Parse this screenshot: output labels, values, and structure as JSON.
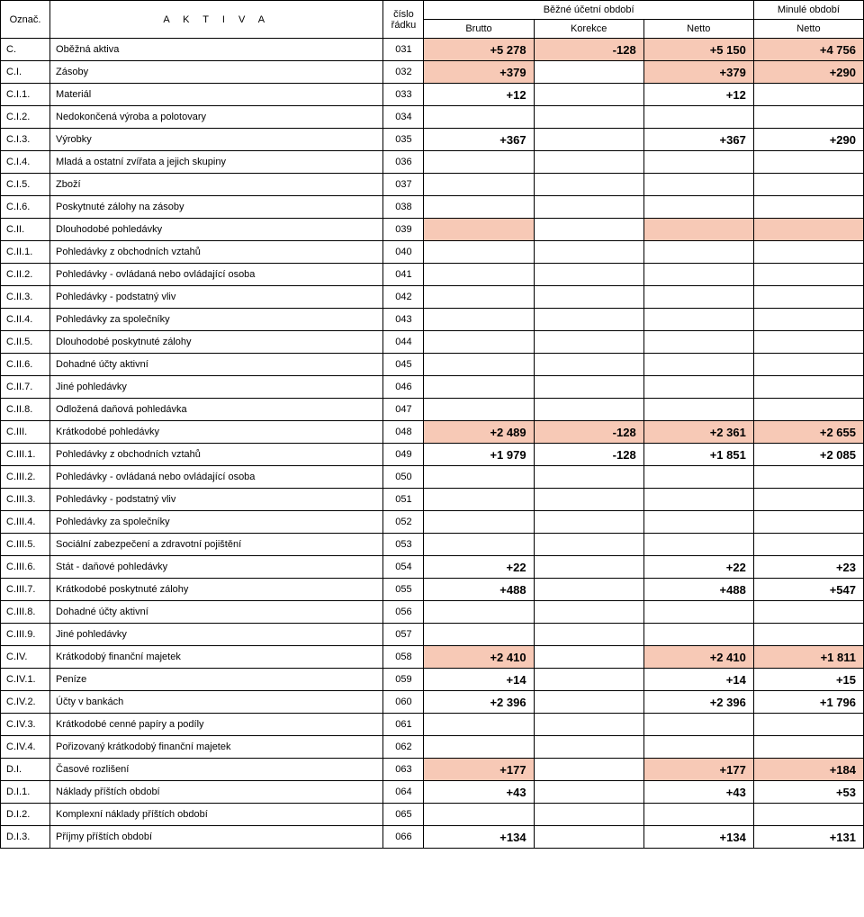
{
  "header": {
    "col_code": "Označ.",
    "col_name": "A K T I V A",
    "col_rownum_line1": "číslo",
    "col_rownum_line2": "řádku",
    "group_current": "Běžné účetní období",
    "group_prior": "Minulé období",
    "sub_brutto": "Brutto",
    "sub_korekce": "Korekce",
    "sub_netto": "Netto",
    "sub_netto_prior": "Netto"
  },
  "style": {
    "highlight_bg": "#f7c9b6",
    "border_color": "#000000",
    "background": "#ffffff",
    "header_fontsize": 11,
    "cell_fontsize": 11,
    "value_fontsize": 13
  },
  "rows": [
    {
      "code": "C.",
      "name": "Oběžná aktiva",
      "row": "031",
      "brutto": "+5 278",
      "korekce": "-128",
      "netto": "+5 150",
      "prior": "+4 756",
      "hl": [
        true,
        true,
        true,
        true
      ]
    },
    {
      "code": "C.I.",
      "name": "Zásoby",
      "row": "032",
      "brutto": "+379",
      "korekce": "",
      "netto": "+379",
      "prior": "+290",
      "hl": [
        true,
        false,
        true,
        true
      ]
    },
    {
      "code": "C.I.1.",
      "name": "Materiál",
      "row": "033",
      "brutto": "+12",
      "korekce": "",
      "netto": "+12",
      "prior": "",
      "hl": [
        false,
        false,
        false,
        false
      ]
    },
    {
      "code": "C.I.2.",
      "name": "Nedokončená výroba a polotovary",
      "row": "034",
      "brutto": "",
      "korekce": "",
      "netto": "",
      "prior": "",
      "hl": [
        false,
        false,
        false,
        false
      ]
    },
    {
      "code": "C.I.3.",
      "name": "Výrobky",
      "row": "035",
      "brutto": "+367",
      "korekce": "",
      "netto": "+367",
      "prior": "+290",
      "hl": [
        false,
        false,
        false,
        false
      ]
    },
    {
      "code": "C.I.4.",
      "name": "Mladá a ostatní zvířata a jejich skupiny",
      "row": "036",
      "brutto": "",
      "korekce": "",
      "netto": "",
      "prior": "",
      "hl": [
        false,
        false,
        false,
        false
      ]
    },
    {
      "code": "C.I.5.",
      "name": "Zboží",
      "row": "037",
      "brutto": "",
      "korekce": "",
      "netto": "",
      "prior": "",
      "hl": [
        false,
        false,
        false,
        false
      ]
    },
    {
      "code": "C.I.6.",
      "name": "Poskytnuté zálohy na zásoby",
      "row": "038",
      "brutto": "",
      "korekce": "",
      "netto": "",
      "prior": "",
      "hl": [
        false,
        false,
        false,
        false
      ]
    },
    {
      "code": "C.II.",
      "name": "Dlouhodobé pohledávky",
      "row": "039",
      "brutto": "",
      "korekce": "",
      "netto": "",
      "prior": "",
      "hl": [
        true,
        false,
        true,
        true
      ]
    },
    {
      "code": "C.II.1.",
      "name": "Pohledávky z obchodních vztahů",
      "row": "040",
      "brutto": "",
      "korekce": "",
      "netto": "",
      "prior": "",
      "hl": [
        false,
        false,
        false,
        false
      ]
    },
    {
      "code": "C.II.2.",
      "name": "Pohledávky - ovládaná nebo ovládající osoba",
      "row": "041",
      "brutto": "",
      "korekce": "",
      "netto": "",
      "prior": "",
      "hl": [
        false,
        false,
        false,
        false
      ]
    },
    {
      "code": "C.II.3.",
      "name": "Pohledávky - podstatný vliv",
      "row": "042",
      "brutto": "",
      "korekce": "",
      "netto": "",
      "prior": "",
      "hl": [
        false,
        false,
        false,
        false
      ]
    },
    {
      "code": "C.II.4.",
      "name": "Pohledávky za společníky",
      "row": "043",
      "brutto": "",
      "korekce": "",
      "netto": "",
      "prior": "",
      "hl": [
        false,
        false,
        false,
        false
      ]
    },
    {
      "code": "C.II.5.",
      "name": "Dlouhodobé poskytnuté zálohy",
      "row": "044",
      "brutto": "",
      "korekce": "",
      "netto": "",
      "prior": "",
      "hl": [
        false,
        false,
        false,
        false
      ]
    },
    {
      "code": "C.II.6.",
      "name": "Dohadné účty aktivní",
      "row": "045",
      "brutto": "",
      "korekce": "",
      "netto": "",
      "prior": "",
      "hl": [
        false,
        false,
        false,
        false
      ]
    },
    {
      "code": "C.II.7.",
      "name": "Jiné pohledávky",
      "row": "046",
      "brutto": "",
      "korekce": "",
      "netto": "",
      "prior": "",
      "hl": [
        false,
        false,
        false,
        false
      ]
    },
    {
      "code": "C.II.8.",
      "name": "Odložená daňová pohledávka",
      "row": "047",
      "brutto": "",
      "korekce": "",
      "netto": "",
      "prior": "",
      "hl": [
        false,
        false,
        false,
        false
      ]
    },
    {
      "code": "C.III.",
      "name": "Krátkodobé pohledávky",
      "row": "048",
      "brutto": "+2 489",
      "korekce": "-128",
      "netto": "+2 361",
      "prior": "+2 655",
      "hl": [
        true,
        true,
        true,
        true
      ]
    },
    {
      "code": "C.III.1.",
      "name": "Pohledávky z obchodních vztahů",
      "row": "049",
      "brutto": "+1 979",
      "korekce": "-128",
      "netto": "+1 851",
      "prior": "+2 085",
      "hl": [
        false,
        false,
        false,
        false
      ]
    },
    {
      "code": "C.III.2.",
      "name": "Pohledávky - ovládaná nebo ovládající osoba",
      "row": "050",
      "brutto": "",
      "korekce": "",
      "netto": "",
      "prior": "",
      "hl": [
        false,
        false,
        false,
        false
      ]
    },
    {
      "code": "C.III.3.",
      "name": "Pohledávky - podstatný vliv",
      "row": "051",
      "brutto": "",
      "korekce": "",
      "netto": "",
      "prior": "",
      "hl": [
        false,
        false,
        false,
        false
      ]
    },
    {
      "code": "C.III.4.",
      "name": "Pohledávky za společníky",
      "row": "052",
      "brutto": "",
      "korekce": "",
      "netto": "",
      "prior": "",
      "hl": [
        false,
        false,
        false,
        false
      ]
    },
    {
      "code": "C.III.5.",
      "name": "Sociální zabezpečení a zdravotní pojištění",
      "row": "053",
      "brutto": "",
      "korekce": "",
      "netto": "",
      "prior": "",
      "hl": [
        false,
        false,
        false,
        false
      ]
    },
    {
      "code": "C.III.6.",
      "name": "Stát - daňové pohledávky",
      "row": "054",
      "brutto": "+22",
      "korekce": "",
      "netto": "+22",
      "prior": "+23",
      "hl": [
        false,
        false,
        false,
        false
      ]
    },
    {
      "code": "C.III.7.",
      "name": "Krátkodobé poskytnuté zálohy",
      "row": "055",
      "brutto": "+488",
      "korekce": "",
      "netto": "+488",
      "prior": "+547",
      "hl": [
        false,
        false,
        false,
        false
      ]
    },
    {
      "code": "C.III.8.",
      "name": "Dohadné účty aktivní",
      "row": "056",
      "brutto": "",
      "korekce": "",
      "netto": "",
      "prior": "",
      "hl": [
        false,
        false,
        false,
        false
      ]
    },
    {
      "code": "C.III.9.",
      "name": "Jiné pohledávky",
      "row": "057",
      "brutto": "",
      "korekce": "",
      "netto": "",
      "prior": "",
      "hl": [
        false,
        false,
        false,
        false
      ]
    },
    {
      "code": "C.IV.",
      "name": "Krátkodobý finanční majetek",
      "row": "058",
      "brutto": "+2 410",
      "korekce": "",
      "netto": "+2 410",
      "prior": "+1 811",
      "hl": [
        true,
        false,
        true,
        true
      ]
    },
    {
      "code": "C.IV.1.",
      "name": "Peníze",
      "row": "059",
      "brutto": "+14",
      "korekce": "",
      "netto": "+14",
      "prior": "+15",
      "hl": [
        false,
        false,
        false,
        false
      ]
    },
    {
      "code": "C.IV.2.",
      "name": "Účty v bankách",
      "row": "060",
      "brutto": "+2 396",
      "korekce": "",
      "netto": "+2 396",
      "prior": "+1 796",
      "hl": [
        false,
        false,
        false,
        false
      ]
    },
    {
      "code": "C.IV.3.",
      "name": "Krátkodobé cenné papíry a podíly",
      "row": "061",
      "brutto": "",
      "korekce": "",
      "netto": "",
      "prior": "",
      "hl": [
        false,
        false,
        false,
        false
      ]
    },
    {
      "code": "C.IV.4.",
      "name": "Pořizovaný krátkodobý finanční majetek",
      "row": "062",
      "brutto": "",
      "korekce": "",
      "netto": "",
      "prior": "",
      "hl": [
        false,
        false,
        false,
        false
      ]
    },
    {
      "code": "D.I.",
      "name": "Časové rozlišení",
      "row": "063",
      "brutto": "+177",
      "korekce": "",
      "netto": "+177",
      "prior": "+184",
      "hl": [
        true,
        false,
        true,
        true
      ]
    },
    {
      "code": "D.I.1.",
      "name": "Náklady příštích období",
      "row": "064",
      "brutto": "+43",
      "korekce": "",
      "netto": "+43",
      "prior": "+53",
      "hl": [
        false,
        false,
        false,
        false
      ]
    },
    {
      "code": "D.I.2.",
      "name": "Komplexní náklady příštích období",
      "row": "065",
      "brutto": "",
      "korekce": "",
      "netto": "",
      "prior": "",
      "hl": [
        false,
        false,
        false,
        false
      ]
    },
    {
      "code": "D.I.3.",
      "name": "Příjmy příštích období",
      "row": "066",
      "brutto": "+134",
      "korekce": "",
      "netto": "+134",
      "prior": "+131",
      "hl": [
        false,
        false,
        false,
        false
      ]
    }
  ]
}
